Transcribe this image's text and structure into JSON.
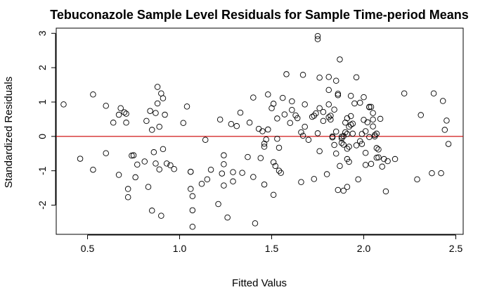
{
  "chart_data": {
    "type": "scatter",
    "title": "Tebuconazole Sample Level Residuals for Sample Time-period Means",
    "xlabel": "Fitted Valus",
    "ylabel": "Standardized Residuals",
    "xlim": [
      0.33,
      2.54
    ],
    "ylim": [
      -2.85,
      3.15
    ],
    "xticks": [
      0.5,
      1.0,
      1.5,
      2.0,
      2.5
    ],
    "xtick_labels": [
      "0.5",
      "1.0",
      "1.5",
      "2.0",
      "2.5"
    ],
    "yticks": [
      -2,
      -1,
      0,
      1,
      2,
      3
    ],
    "ytick_labels": [
      "-2",
      "-1",
      "0",
      "1",
      "2",
      "3"
    ],
    "reference_line": {
      "y": 0,
      "color": "#cc0000"
    },
    "grid": false,
    "legend": "none",
    "point_style": "open-circle",
    "points": [
      [
        0.37,
        0.93
      ],
      [
        0.46,
        -0.65
      ],
      [
        0.53,
        1.22
      ],
      [
        0.53,
        -0.97
      ],
      [
        0.6,
        0.89
      ],
      [
        0.6,
        -0.49
      ],
      [
        0.64,
        0.4
      ],
      [
        0.67,
        0.63
      ],
      [
        0.68,
        0.82
      ],
      [
        0.7,
        0.7
      ],
      [
        0.67,
        -1.12
      ],
      [
        0.71,
        0.4
      ],
      [
        0.71,
        0.66
      ],
      [
        0.72,
        -1.53
      ],
      [
        0.72,
        -1.77
      ],
      [
        0.74,
        -0.56
      ],
      [
        0.75,
        -0.55
      ],
      [
        0.76,
        -1.19
      ],
      [
        0.77,
        -0.82
      ],
      [
        0.81,
        -0.73
      ],
      [
        0.82,
        0.45
      ],
      [
        0.83,
        -1.47
      ],
      [
        0.84,
        0.74
      ],
      [
        0.85,
        -2.16
      ],
      [
        0.85,
        0.19
      ],
      [
        0.86,
        -0.46
      ],
      [
        0.87,
        0.68
      ],
      [
        0.87,
        -0.79
      ],
      [
        0.88,
        1.44
      ],
      [
        0.88,
        0.96
      ],
      [
        0.89,
        -0.96
      ],
      [
        0.89,
        0.28
      ],
      [
        0.9,
        1.25
      ],
      [
        0.9,
        -2.31
      ],
      [
        0.91,
        1.11
      ],
      [
        0.91,
        -0.37
      ],
      [
        0.92,
        0.63
      ],
      [
        0.93,
        -0.79
      ],
      [
        0.95,
        -0.84
      ],
      [
        0.97,
        -0.95
      ],
      [
        1.02,
        0.39
      ],
      [
        1.04,
        0.87
      ],
      [
        1.06,
        -1.03
      ],
      [
        1.06,
        -1.53
      ],
      [
        1.06,
        -1.03
      ],
      [
        1.07,
        -2.15
      ],
      [
        1.07,
        -2.63
      ],
      [
        1.07,
        -1.74
      ],
      [
        1.12,
        -1.38
      ],
      [
        1.14,
        -0.1
      ],
      [
        1.15,
        -1.25
      ],
      [
        1.17,
        -0.97
      ],
      [
        1.21,
        -1.97
      ],
      [
        1.22,
        0.49
      ],
      [
        1.23,
        -1.08
      ],
      [
        1.24,
        -1.43
      ],
      [
        1.24,
        -0.55
      ],
      [
        1.24,
        -0.81
      ],
      [
        1.26,
        -2.36
      ],
      [
        1.28,
        0.36
      ],
      [
        1.29,
        -1.31
      ],
      [
        1.29,
        -1.04
      ],
      [
        1.31,
        0.3
      ],
      [
        1.33,
        0.69
      ],
      [
        1.34,
        -1.06
      ],
      [
        1.37,
        -0.6
      ],
      [
        1.38,
        0.4
      ],
      [
        1.4,
        -1.18
      ],
      [
        1.4,
        1.13
      ],
      [
        1.41,
        -2.53
      ],
      [
        1.43,
        0.22
      ],
      [
        1.44,
        -0.63
      ],
      [
        1.45,
        0.15
      ],
      [
        1.46,
        -1.4
      ],
      [
        1.46,
        -0.3
      ],
      [
        1.46,
        -0.21
      ],
      [
        1.47,
        -0.09
      ],
      [
        1.48,
        0.2
      ],
      [
        1.48,
        1.22
      ],
      [
        1.5,
        0.82
      ],
      [
        1.51,
        -0.75
      ],
      [
        1.51,
        -1.7
      ],
      [
        1.51,
        0.95
      ],
      [
        1.52,
        -0.86
      ],
      [
        1.53,
        -0.07
      ],
      [
        1.53,
        0.52
      ],
      [
        1.54,
        -1.0
      ],
      [
        1.54,
        -0.33
      ],
      [
        1.55,
        -1.06
      ],
      [
        1.56,
        1.12
      ],
      [
        1.57,
        0.64
      ],
      [
        1.58,
        1.81
      ],
      [
        1.6,
        0.39
      ],
      [
        1.61,
        1.02
      ],
      [
        1.61,
        0.77
      ],
      [
        1.63,
        0.61
      ],
      [
        1.64,
        0.53
      ],
      [
        1.66,
        -1.33
      ],
      [
        1.66,
        0.12
      ],
      [
        1.67,
        1.79
      ],
      [
        1.67,
        0.02
      ],
      [
        1.68,
        0.28
      ],
      [
        1.68,
        0.93
      ],
      [
        1.7,
        -0.1
      ],
      [
        1.72,
        0.57
      ],
      [
        1.73,
        0.6
      ],
      [
        1.73,
        -1.24
      ],
      [
        1.74,
        0.67
      ],
      [
        1.75,
        0.09
      ],
      [
        1.75,
        2.83
      ],
      [
        1.75,
        2.92
      ],
      [
        1.76,
        1.71
      ],
      [
        1.76,
        0.82
      ],
      [
        1.76,
        -0.43
      ],
      [
        1.78,
        0.71
      ],
      [
        1.78,
        0.45
      ],
      [
        1.8,
        -1.1
      ],
      [
        1.81,
        0.56
      ],
      [
        1.81,
        0.93
      ],
      [
        1.81,
        1.73
      ],
      [
        1.81,
        1.35
      ],
      [
        1.82,
        0.6
      ],
      [
        1.82,
        0.49
      ],
      [
        1.83,
        -0.03
      ],
      [
        1.83,
        0.0
      ],
      [
        1.84,
        0.78
      ],
      [
        1.84,
        -0.25
      ],
      [
        1.85,
        0.14
      ],
      [
        1.85,
        -0.5
      ],
      [
        1.85,
        1.62
      ],
      [
        1.86,
        1.24
      ],
      [
        1.86,
        1.2
      ],
      [
        1.86,
        -1.56
      ],
      [
        1.87,
        -0.86
      ],
      [
        1.87,
        2.24
      ],
      [
        1.88,
        -0.06
      ],
      [
        1.88,
        -0.19
      ],
      [
        1.88,
        -0.01
      ],
      [
        1.89,
        -1.58
      ],
      [
        1.89,
        0.01
      ],
      [
        1.89,
        -0.24
      ],
      [
        1.9,
        0.4
      ],
      [
        1.9,
        0.12
      ],
      [
        1.91,
        -0.66
      ],
      [
        1.91,
        -0.36
      ],
      [
        1.91,
        0.53
      ],
      [
        1.91,
        0.07
      ],
      [
        1.91,
        -1.47
      ],
      [
        1.92,
        -0.3
      ],
      [
        1.92,
        0.28
      ],
      [
        1.92,
        -0.74
      ],
      [
        1.93,
        0.59
      ],
      [
        1.93,
        0.34
      ],
      [
        1.93,
        1.18
      ],
      [
        1.94,
        0.37
      ],
      [
        1.94,
        0.08
      ],
      [
        1.95,
        0.96
      ],
      [
        1.96,
        -0.26
      ],
      [
        1.96,
        1.72
      ],
      [
        1.97,
        -1.25
      ],
      [
        1.98,
        0.98
      ],
      [
        1.98,
        -0.14
      ],
      [
        1.99,
        0.07
      ],
      [
        1.99,
        -0.22
      ],
      [
        2.0,
        1.14
      ],
      [
        2.0,
        0.48
      ],
      [
        2.01,
        -0.48
      ],
      [
        2.01,
        0.15
      ],
      [
        2.01,
        -0.83
      ],
      [
        2.02,
        0.41
      ],
      [
        2.03,
        0.85
      ],
      [
        2.03,
        -0.02
      ],
      [
        2.03,
        0.86
      ],
      [
        2.04,
        0.86
      ],
      [
        2.04,
        -0.8
      ],
      [
        2.05,
        0.29
      ],
      [
        2.05,
        0.68
      ],
      [
        2.05,
        0.49
      ],
      [
        2.06,
        0.0
      ],
      [
        2.06,
        0.04
      ],
      [
        2.07,
        0.08
      ],
      [
        2.07,
        -0.62
      ],
      [
        2.07,
        -0.34
      ],
      [
        2.08,
        -0.61
      ],
      [
        2.08,
        -0.38
      ],
      [
        2.09,
        0.51
      ],
      [
        2.1,
        -0.88
      ],
      [
        2.11,
        -0.66
      ],
      [
        2.12,
        -1.6
      ],
      [
        2.13,
        -0.72
      ],
      [
        2.17,
        -0.66
      ],
      [
        2.22,
        1.25
      ],
      [
        2.29,
        -1.25
      ],
      [
        2.31,
        0.62
      ],
      [
        2.37,
        -1.07
      ],
      [
        2.38,
        1.25
      ],
      [
        2.42,
        -1.07
      ],
      [
        2.43,
        1.03
      ],
      [
        2.44,
        0.19
      ],
      [
        2.45,
        0.46
      ],
      [
        2.46,
        -0.22
      ]
    ]
  }
}
